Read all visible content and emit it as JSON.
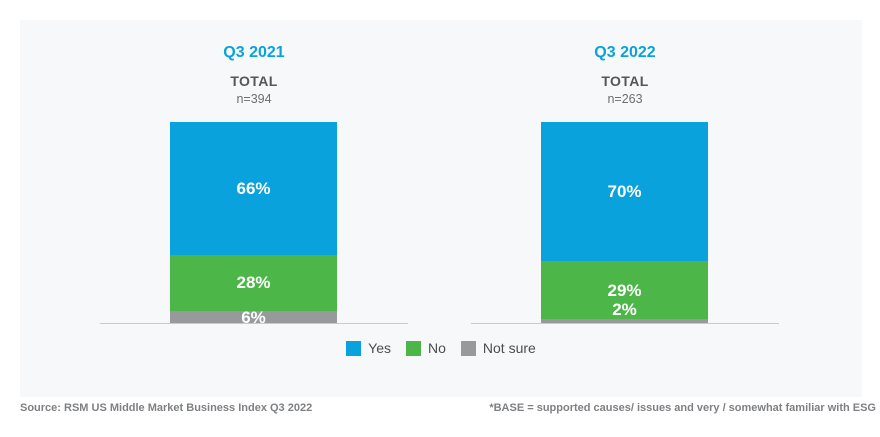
{
  "chart_data": {
    "type": "bar",
    "subtype": "100-percent-stacked-column",
    "grid": false,
    "legend_position": "bottom-center",
    "categories": [
      "Yes",
      "No",
      "Not sure"
    ],
    "colors": {
      "Yes": "#0aa2dd",
      "No": "#4cb748",
      "Not sure": "#97999b"
    },
    "groups": [
      {
        "title": "Q3 2021",
        "subtitle": "TOTAL",
        "n": "n=394",
        "values": [
          {
            "category": "Yes",
            "pct": 66,
            "label": "66%"
          },
          {
            "category": "No",
            "pct": 28,
            "label": "28%"
          },
          {
            "category": "Not sure",
            "pct": 6,
            "label": "6%"
          }
        ]
      },
      {
        "title": "Q3 2022",
        "subtitle": "TOTAL",
        "n": "n=263",
        "values": [
          {
            "category": "Yes",
            "pct": 70,
            "label": "70%"
          },
          {
            "category": "No",
            "pct": 29,
            "label": "29%"
          },
          {
            "category": "Not sure",
            "pct": 2,
            "label": "2%"
          }
        ]
      }
    ],
    "legend": [
      {
        "label": "Yes",
        "color": "#0aa2dd"
      },
      {
        "label": "No",
        "color": "#4cb748"
      },
      {
        "label": "Not sure",
        "color": "#97999b"
      }
    ]
  },
  "footer": {
    "source": "Source: RSM US Middle Market Business Index Q3 2022",
    "base_note": "*BASE = supported causes/ issues and very / somewhat familiar with ESG"
  },
  "styles": {
    "page_background": "#ffffff",
    "panel_background": "#f7f8f9",
    "title_color": "#0aa2dd",
    "subtitle_color": "#54565a",
    "n_color": "#6d6e71",
    "label_text_color": "#ffffff",
    "legend_text_color": "#4b4d51",
    "footer_text_color": "#7e8083",
    "axis_color": "#c9cacb"
  }
}
